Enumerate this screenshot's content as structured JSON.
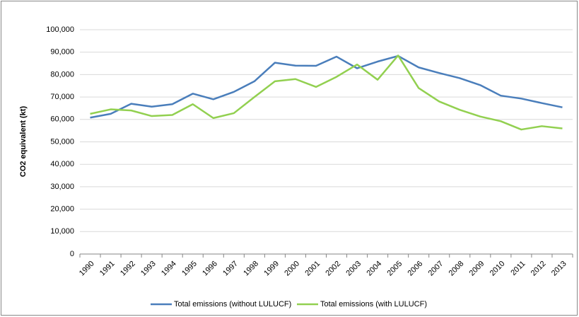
{
  "chart_data": {
    "type": "line",
    "y_label": "CO2 equivalent (kt)",
    "categories": [
      "1990",
      "1991",
      "1992",
      "1993",
      "1994",
      "1995",
      "1996",
      "1997",
      "1998",
      "1999",
      "2000",
      "2001",
      "2002",
      "2003",
      "2004",
      "2005",
      "2006",
      "2007",
      "2008",
      "2009",
      "2010",
      "2011",
      "2012",
      "2013"
    ],
    "series": [
      {
        "name": "Total emissions (without LULUCF)",
        "color": "#4a7ebb",
        "values": [
          60800,
          62500,
          67000,
          65700,
          66800,
          71500,
          69000,
          72300,
          77000,
          85300,
          84000,
          83900,
          88000,
          82800,
          85800,
          88300,
          83200,
          80700,
          78400,
          75300,
          70600,
          69300,
          67300,
          65400
        ]
      },
      {
        "name": "Total emissions (with LULUCF)",
        "color": "#92d050",
        "values": [
          62500,
          64500,
          64000,
          61500,
          62000,
          66800,
          60600,
          62800,
          70000,
          77000,
          78000,
          74500,
          79000,
          84500,
          77700,
          88500,
          74000,
          68000,
          64300,
          61300,
          59200,
          55500,
          57000,
          56000
        ]
      }
    ],
    "ylim": [
      0,
      100000
    ],
    "yticks": [
      0,
      {
        "value": 10000,
        "label": "10,000"
      },
      {
        "value": 20000,
        "label": "20,000"
      },
      {
        "value": 30000,
        "label": "30,000"
      },
      {
        "value": 40000,
        "label": "40,000"
      },
      {
        "value": 50000,
        "label": "50,000"
      },
      {
        "value": 60000,
        "label": "60,000"
      },
      {
        "value": 70000,
        "label": "70,000"
      },
      {
        "value": 80000,
        "label": "80,000"
      },
      {
        "value": 90000,
        "label": "90,000"
      },
      {
        "value": 100000,
        "label": "100,000"
      }
    ],
    "grid": true,
    "legend": "bottom"
  }
}
